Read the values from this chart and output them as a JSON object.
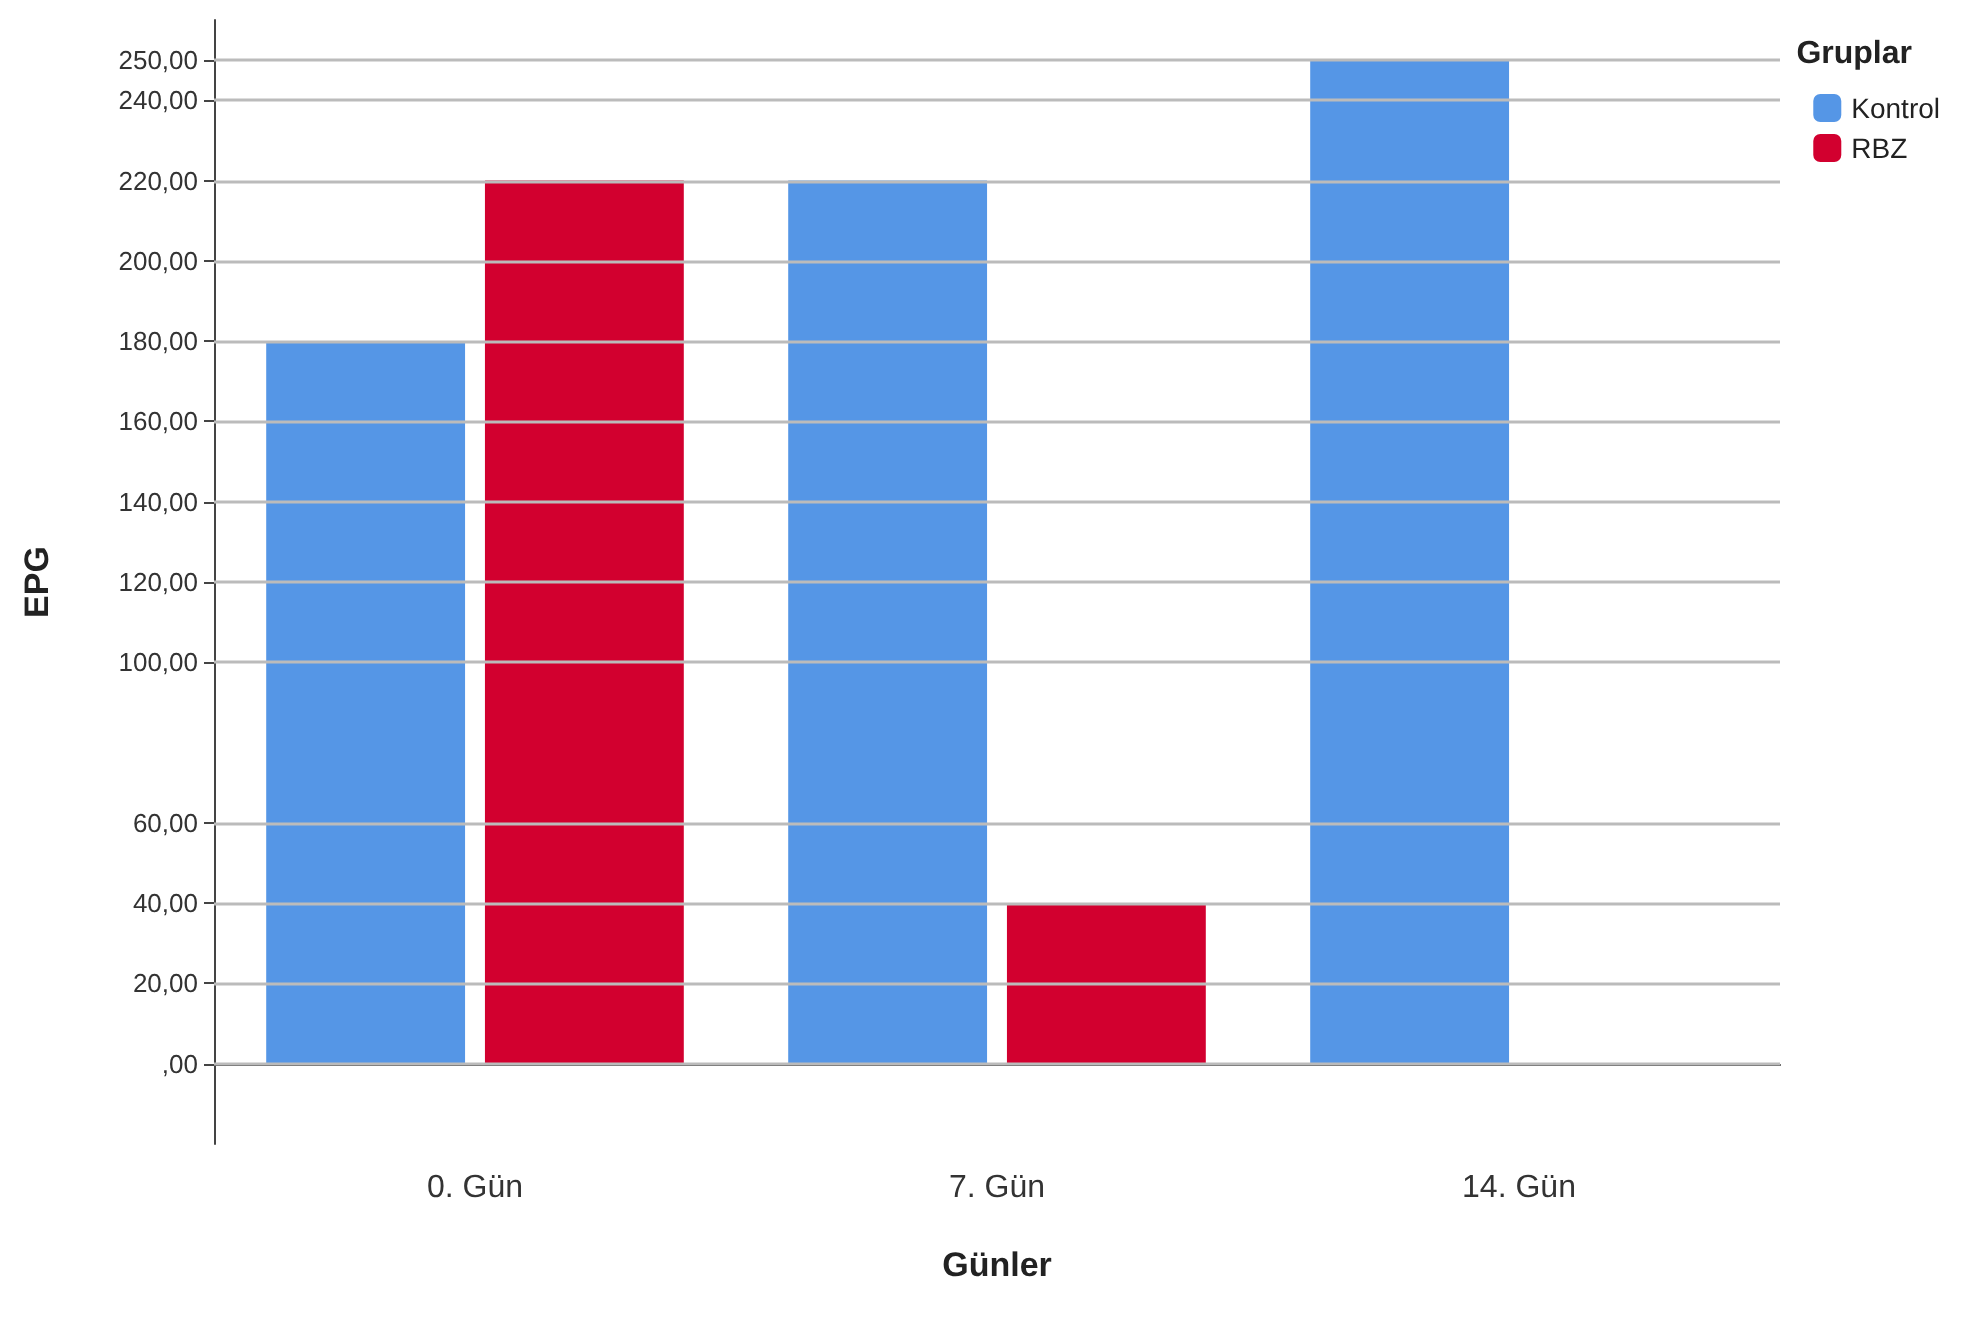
{
  "chart_data": {
    "type": "bar",
    "categories": [
      "0. Gün",
      "7. Gün",
      "14. Gün"
    ],
    "series": [
      {
        "name": "Kontrol",
        "color": "#5596e6",
        "values": [
          180,
          220,
          250
        ]
      },
      {
        "name": "RBZ",
        "color": "#d2002f",
        "values": [
          220,
          40,
          0
        ]
      }
    ],
    "xlabel": "Günler",
    "ylabel": "EPG",
    "legend_title": "Gruplar",
    "legend": "top right",
    "ylim": [
      -20,
      260
    ],
    "yticks": [
      {
        "value": 0,
        "label": ",00"
      },
      {
        "value": 20,
        "label": "20,00"
      },
      {
        "value": 40,
        "label": "40,00"
      },
      {
        "value": 60,
        "label": "60,00"
      },
      {
        "value": 100,
        "label": "100,00"
      },
      {
        "value": 120,
        "label": "120,00"
      },
      {
        "value": 140,
        "label": "140,00"
      },
      {
        "value": 160,
        "label": "160,00"
      },
      {
        "value": 180,
        "label": "180,00"
      },
      {
        "value": 200,
        "label": "200,00"
      },
      {
        "value": 220,
        "label": "220,00"
      },
      {
        "value": 240,
        "label": "240,00"
      },
      {
        "value": 250,
        "label": "250,00"
      }
    ],
    "grid": "y"
  }
}
